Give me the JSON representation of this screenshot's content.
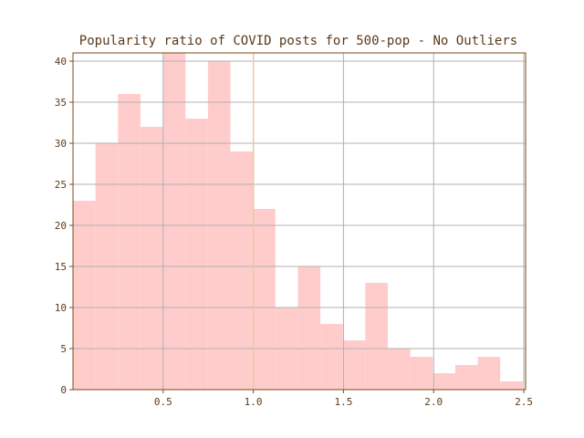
{
  "chart_data": {
    "type": "bar",
    "title": "Popularity ratio of COVID posts for 500-pop - No Outliers",
    "xlabel": "",
    "ylabel": "",
    "bin_width": 0.1247,
    "bin_edges_start": 0.0,
    "values": [
      23,
      30,
      36,
      32,
      41,
      33,
      40,
      29,
      22,
      10,
      15,
      8,
      6,
      13,
      5,
      4,
      2,
      3,
      4,
      1
    ],
    "xlim": [
      0.0,
      2.51
    ],
    "ylim": [
      0,
      41
    ],
    "xticks": [
      0.5,
      1.0,
      1.5,
      2.0,
      2.5
    ],
    "xtick_labels": [
      "0.5",
      "1.0",
      "1.5",
      "2.0",
      "2.5"
    ],
    "yticks": [
      0,
      5,
      10,
      15,
      20,
      25,
      30,
      35,
      40
    ],
    "ytick_labels": [
      "0",
      "5",
      "10",
      "15",
      "20",
      "25",
      "30",
      "35",
      "40"
    ],
    "reference_line_x": 1.0,
    "grid": true,
    "bar_color": "#ffcccc",
    "reference_line_color": "#e8c9a8",
    "axis_color": "#7a4a1a",
    "text_color": "#5a3a1a"
  }
}
